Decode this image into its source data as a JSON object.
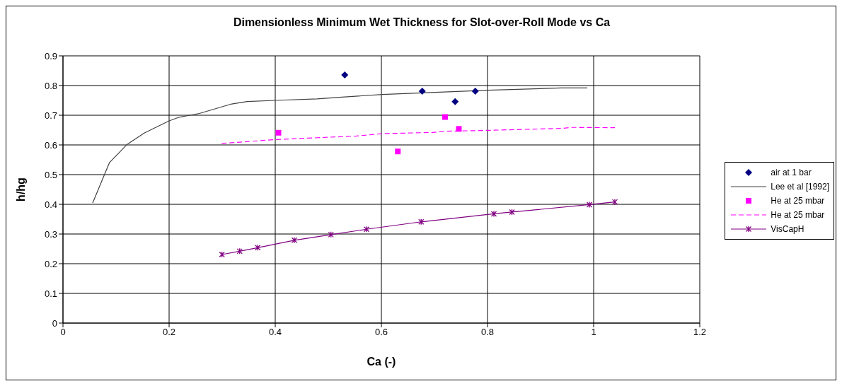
{
  "chart_data": {
    "type": "scatter",
    "title": "Dimensionless Minimum Wet Thickness for Slot-over-Roll Mode vs Ca",
    "xlabel": "Ca (-)",
    "ylabel": "h/hg",
    "xlim": [
      0,
      1.2
    ],
    "xticks": [
      0,
      0.2,
      0.4,
      0.6,
      0.8,
      1,
      1.2
    ],
    "ylim": [
      0,
      0.9
    ],
    "yticks": [
      0,
      0.1,
      0.2,
      0.3,
      0.4,
      0.5,
      0.6,
      0.7,
      0.8,
      0.9
    ],
    "grid": true,
    "legend": "right",
    "series": [
      {
        "name": "air at 1 bar",
        "marker": "diamond",
        "color": "#000080",
        "x": [
          0.531,
          0.677,
          0.739,
          0.777
        ],
        "values": [
          0.836,
          0.781,
          0.746,
          0.781
        ]
      },
      {
        "name": "Lee et al [1992]",
        "type": "line",
        "marker": "none",
        "line_style": "solid",
        "color": "#404040",
        "x": [
          0.056,
          0.0875,
          0.121,
          0.153,
          0.2,
          0.218,
          0.257,
          0.318,
          0.347,
          0.4,
          0.479,
          0.526,
          0.602,
          0.801,
          0.939,
          0.988
        ],
        "values": [
          0.405,
          0.54,
          0.602,
          0.64,
          0.681,
          0.693,
          0.706,
          0.738,
          0.746,
          0.75,
          0.755,
          0.761,
          0.77,
          0.784,
          0.792,
          0.792
        ]
      },
      {
        "name": "He at 25 mbar",
        "marker": "square",
        "color": "#ff00ff",
        "x": [
          0.406,
          0.631,
          0.72,
          0.746
        ],
        "values": [
          0.641,
          0.578,
          0.694,
          0.654
        ]
      },
      {
        "name": "He at 25 mbar",
        "type": "line",
        "marker": "none",
        "line_style": "dashed",
        "color": "#ff00ff",
        "x": [
          0.299,
          0.4,
          0.553,
          0.602,
          0.697,
          0.719,
          0.8,
          0.943,
          0.957,
          1.04
        ],
        "values": [
          0.605,
          0.618,
          0.63,
          0.638,
          0.642,
          0.646,
          0.649,
          0.656,
          0.659,
          0.658
        ]
      },
      {
        "name": "VisCapH",
        "type": "line",
        "marker": "cross",
        "line_style": "solid",
        "color": "#800080",
        "x": [
          0.2996,
          0.333,
          0.367,
          0.436,
          0.505,
          0.572,
          0.675,
          0.812,
          0.846,
          0.992,
          1.04
        ],
        "values": [
          0.231,
          0.242,
          0.254,
          0.279,
          0.298,
          0.316,
          0.341,
          0.368,
          0.374,
          0.399,
          0.408
        ]
      }
    ]
  }
}
